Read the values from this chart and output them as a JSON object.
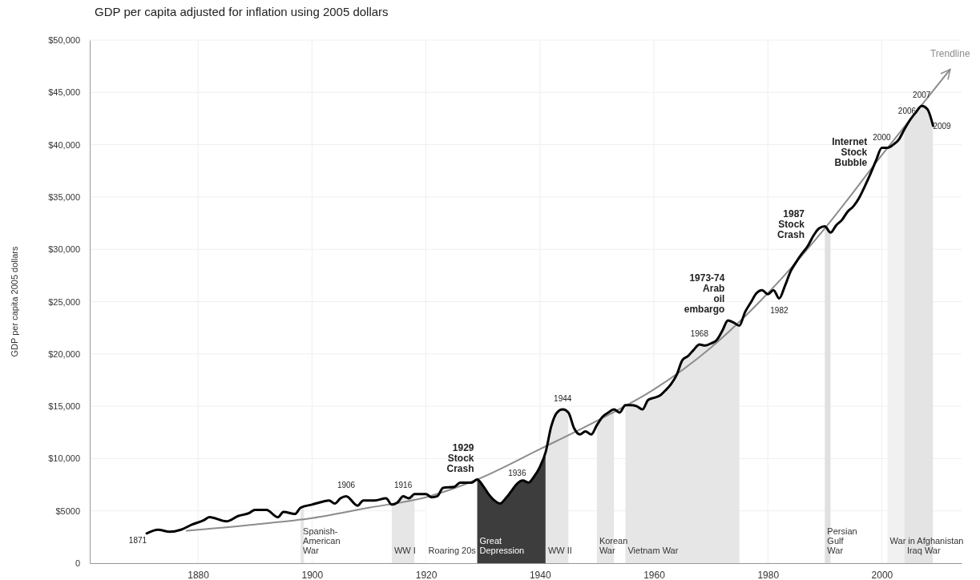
{
  "chart_data": {
    "type": "line",
    "title": "GDP per capita adjusted for inflation using 2005 dollars",
    "ylabel": "GDP per capita 2005 dollars",
    "xlim": [
      1861,
      2014
    ],
    "xticks": [
      1880,
      1900,
      1920,
      1940,
      1960,
      1980,
      2000
    ],
    "ylim": [
      0,
      50000
    ],
    "yticks": [
      0,
      {
        "value": 5000,
        "label": "$5000"
      },
      {
        "value": 10000,
        "label": "$10,000"
      },
      {
        "value": 15000,
        "label": "$15,000"
      },
      {
        "value": 20000,
        "label": "$20,000"
      },
      {
        "value": 25000,
        "label": "$25,000"
      },
      {
        "value": 30000,
        "label": "$30,000"
      },
      {
        "value": 35000,
        "label": "$35,000"
      },
      {
        "value": 40000,
        "label": "$40,000"
      },
      {
        "value": 45000,
        "label": "$45,000"
      },
      {
        "value": 50000,
        "label": "$50,000"
      }
    ],
    "grid": true,
    "x": [
      1871,
      1873,
      1875,
      1877,
      1879,
      1881,
      1882,
      1885,
      1887,
      1889,
      1890,
      1892,
      1894,
      1895,
      1897,
      1898,
      1900,
      1902,
      1903,
      1904,
      1905,
      1906,
      1908,
      1909,
      1911,
      1913,
      1914,
      1915,
      1916,
      1917,
      1918,
      1920,
      1921,
      1922,
      1923,
      1925,
      1926,
      1928,
      1929,
      1930,
      1931,
      1932,
      1933,
      1934,
      1935,
      1936,
      1937,
      1938,
      1939,
      1940,
      1941,
      1942,
      1943,
      1944,
      1945,
      1946,
      1947,
      1948,
      1949,
      1950,
      1951,
      1952,
      1953,
      1954,
      1955,
      1956,
      1957,
      1958,
      1959,
      1960,
      1961,
      1962,
      1963,
      1964,
      1965,
      1966,
      1967,
      1968,
      1969,
      1970,
      1971,
      1972,
      1973,
      1974,
      1975,
      1976,
      1977,
      1978,
      1979,
      1980,
      1981,
      1982,
      1983,
      1984,
      1985,
      1986,
      1987,
      1988,
      1989,
      1990,
      1991,
      1992,
      1993,
      1994,
      1995,
      1996,
      1997,
      1998,
      1999,
      2000,
      2001,
      2002,
      2003,
      2004,
      2005,
      2006,
      2007,
      2008,
      2009
    ],
    "series": [
      {
        "color": "#000000",
        "values": [
          2850,
          3200,
          3000,
          3200,
          3700,
          4100,
          4400,
          4000,
          4500,
          4800,
          5100,
          5100,
          4400,
          4900,
          4700,
          5300,
          5600,
          5900,
          6000,
          5700,
          6200,
          6400,
          5500,
          6000,
          6000,
          6200,
          5600,
          5800,
          6400,
          6200,
          6600,
          6600,
          6300,
          6400,
          7200,
          7300,
          7700,
          7700,
          8000,
          7400,
          6600,
          6000,
          5700,
          6200,
          6900,
          7600,
          7900,
          7700,
          8300,
          9200,
          10600,
          13100,
          14400,
          14700,
          14400,
          12900,
          12300,
          12600,
          12300,
          13200,
          14000,
          14400,
          14700,
          14400,
          15100,
          15100,
          15000,
          14700,
          15600,
          15800,
          16000,
          16500,
          17100,
          18000,
          19400,
          19800,
          20400,
          20900,
          20800,
          21000,
          21300,
          22200,
          23200,
          23000,
          22700,
          24000,
          24900,
          25800,
          26100,
          25700,
          26100,
          25300,
          26500,
          27900,
          28800,
          29600,
          30300,
          31300,
          32000,
          32200,
          31600,
          32300,
          32800,
          33600,
          34100,
          34900,
          36000,
          37200,
          38500,
          39700,
          39700,
          40000,
          40500,
          41500,
          42400,
          43100,
          43700,
          43400,
          41800
        ]
      },
      {
        "name": "Trendline",
        "type": "line",
        "color": "#8c8c8c",
        "x": [
          1878,
          1890,
          1900,
          1910,
          1920,
          1929,
          1940,
          1950,
          1960,
          1970,
          1980,
          1990,
          2000,
          2012
        ],
        "values": [
          3100,
          3700,
          4300,
          5300,
          6300,
          8000,
          10900,
          13600,
          16600,
          20600,
          25800,
          32000,
          39000,
          47200
        ]
      }
    ],
    "bands": [
      {
        "axis": "x",
        "from": 1898,
        "to": 1898.6,
        "label": "Spanish-\nAmerican\nWar",
        "color": "#e6e6e6"
      },
      {
        "axis": "x",
        "from": 1914,
        "to": 1918,
        "label": "WW I",
        "color": "#e6e6e6"
      },
      {
        "axis": "x",
        "from": 1920,
        "to": 1929,
        "label": "Roaring 20s",
        "color": "#ffffff"
      },
      {
        "axis": "x",
        "from": 1929,
        "to": 1941,
        "label": "Great\nDepression",
        "color": "#3d3d3d"
      },
      {
        "axis": "x",
        "from": 1941,
        "to": 1945,
        "label": "WW II",
        "color": "#e6e6e6"
      },
      {
        "axis": "x",
        "from": 1950,
        "to": 1953,
        "label": "Korean\nWar",
        "color": "#e6e6e6"
      },
      {
        "axis": "x",
        "from": 1955,
        "to": 1975,
        "label": "Vietnam War",
        "color": "#e6e6e6"
      },
      {
        "axis": "x",
        "from": 1990,
        "to": 1991,
        "label": "Persian\nGulf\nWar",
        "color": "#e0e0e0"
      },
      {
        "axis": "x",
        "from": 2001,
        "to": 2009,
        "label": "War in Afghanistan",
        "color": "#f1f1f1"
      },
      {
        "axis": "x",
        "from": 2004,
        "to": 2009,
        "label": "Iraq War",
        "color": "#e4e4e4"
      }
    ],
    "annotations": [
      {
        "text": "1871",
        "x": 1871,
        "y": 2850
      },
      {
        "text": "1906",
        "x": 1906,
        "y": 6400
      },
      {
        "text": "1916",
        "x": 1916,
        "y": 6400
      },
      {
        "text": "1936",
        "x": 1936,
        "y": 7600
      },
      {
        "text": "1944",
        "x": 1944,
        "y": 14700
      },
      {
        "text": "1968",
        "x": 1968,
        "y": 20900
      },
      {
        "text": "1982",
        "x": 1982,
        "y": 25300
      },
      {
        "text": "2000",
        "x": 2000,
        "y": 39700
      },
      {
        "text": "2006",
        "x": 2006,
        "y": 43100
      },
      {
        "text": "2007",
        "x": 2007,
        "y": 43700
      },
      {
        "text": "2009",
        "x": 2009,
        "y": 41800
      },
      {
        "text": "1929\nStock\nCrash",
        "x": 1929,
        "y": 8000
      },
      {
        "text": "1973-74\nArab\noil\nembargo",
        "x": 1973,
        "y": 23200
      },
      {
        "text": "1987\nStock\nCrash",
        "x": 1987,
        "y": 30300
      },
      {
        "text": "Internet\nStock\nBubble",
        "x": 1998,
        "y": 37200
      }
    ]
  }
}
